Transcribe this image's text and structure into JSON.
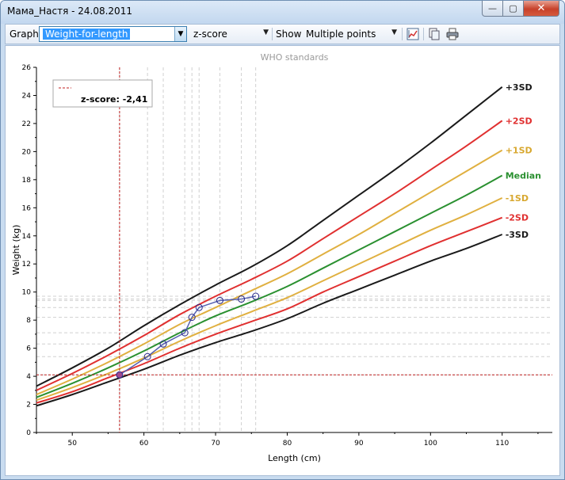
{
  "window": {
    "title": "Мама_Настя - 24.08.2011",
    "buttons": {
      "minimize": "—",
      "maximize": "▢",
      "close": "✕"
    }
  },
  "toolbar": {
    "graph_label": "Graph",
    "graph_value": "Weight-for-length",
    "zscore_value": "z-score",
    "show_label": "Show",
    "show_value": "Multiple points",
    "icons": [
      "chart-edit-icon",
      "copy-icon",
      "print-icon"
    ]
  },
  "colors": {
    "sd3": "#1a1a1a",
    "sd2": "#e03030",
    "sd1": "#e0b040",
    "median": "#2a9030",
    "measure": "#5560b0",
    "cursor": "#c02020"
  },
  "chart_data": {
    "type": "line",
    "title": "WHO standards",
    "xlabel": "Length (cm)",
    "ylabel": "Weight (kg)",
    "xlim": [
      45,
      117
    ],
    "ylim": [
      0,
      26
    ],
    "xticks": [
      50,
      60,
      70,
      80,
      90,
      100,
      110
    ],
    "yticks": [
      0,
      2,
      4,
      6,
      8,
      10,
      12,
      14,
      16,
      18,
      20,
      22,
      24,
      26
    ],
    "legend": "z-score: -2,41",
    "series": [
      {
        "name": "+3SD",
        "color": "#1a1a1a",
        "x": [
          45,
          50,
          55,
          60,
          65,
          70,
          75,
          80,
          85,
          90,
          95,
          100,
          105,
          110
        ],
        "y": [
          3.3,
          4.6,
          6.0,
          7.6,
          9.1,
          10.5,
          11.8,
          13.3,
          15.1,
          16.9,
          18.7,
          20.6,
          22.6,
          24.6
        ]
      },
      {
        "name": "+2SD",
        "color": "#e03030",
        "x": [
          45,
          50,
          55,
          60,
          65,
          70,
          75,
          80,
          85,
          90,
          95,
          100,
          105,
          110
        ],
        "y": [
          3.0,
          4.2,
          5.5,
          6.9,
          8.4,
          9.7,
          10.9,
          12.2,
          13.8,
          15.4,
          17.0,
          18.7,
          20.4,
          22.2
        ]
      },
      {
        "name": "+1SD",
        "color": "#e0b040",
        "x": [
          45,
          50,
          55,
          60,
          65,
          70,
          75,
          80,
          85,
          90,
          95,
          100,
          105,
          110
        ],
        "y": [
          2.7,
          3.8,
          5.0,
          6.3,
          7.7,
          8.9,
          10.1,
          11.3,
          12.7,
          14.1,
          15.6,
          17.1,
          18.6,
          20.1
        ]
      },
      {
        "name": "Median",
        "color": "#2a9030",
        "x": [
          45,
          50,
          55,
          60,
          65,
          70,
          75,
          80,
          85,
          90,
          95,
          100,
          105,
          110
        ],
        "y": [
          2.5,
          3.5,
          4.6,
          5.8,
          7.1,
          8.3,
          9.3,
          10.4,
          11.7,
          13.0,
          14.3,
          15.6,
          16.9,
          18.3
        ]
      },
      {
        "name": "-1SD",
        "color": "#e0b040",
        "x": [
          45,
          50,
          55,
          60,
          65,
          70,
          75,
          80,
          85,
          90,
          95,
          100,
          105,
          110
        ],
        "y": [
          2.3,
          3.2,
          4.2,
          5.3,
          6.5,
          7.6,
          8.6,
          9.6,
          10.8,
          12.0,
          13.2,
          14.4,
          15.5,
          16.7
        ]
      },
      {
        "name": "-2SD",
        "color": "#e03030",
        "x": [
          45,
          50,
          55,
          60,
          65,
          70,
          75,
          80,
          85,
          90,
          95,
          100,
          105,
          110
        ],
        "y": [
          2.1,
          2.9,
          3.9,
          4.9,
          6.0,
          7.0,
          7.9,
          8.8,
          10.0,
          11.1,
          12.2,
          13.3,
          14.3,
          15.3
        ]
      },
      {
        "name": "-3SD",
        "color": "#1a1a1a",
        "x": [
          45,
          50,
          55,
          60,
          65,
          70,
          75,
          80,
          85,
          90,
          95,
          100,
          105,
          110
        ],
        "y": [
          1.9,
          2.7,
          3.6,
          4.5,
          5.5,
          6.4,
          7.2,
          8.1,
          9.2,
          10.2,
          11.2,
          12.2,
          13.1,
          14.1
        ]
      }
    ],
    "measurements": {
      "name": "",
      "x": [
        56.6,
        60.5,
        62.7,
        65.7,
        66.7,
        67.7,
        70.6,
        73.6,
        75.6
      ],
      "y": [
        4.1,
        5.4,
        6.3,
        7.1,
        8.2,
        8.9,
        9.4,
        9.5,
        9.7
      ]
    },
    "cursor": {
      "x": 56.6,
      "y": 4.1
    }
  }
}
